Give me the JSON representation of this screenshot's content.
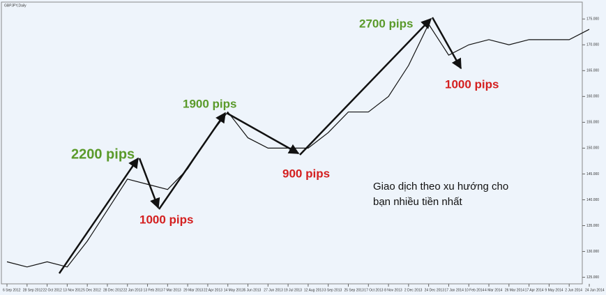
{
  "chart_data": {
    "type": "line",
    "title": "GBPJPY,Daily",
    "categories": [
      "6 Sep 2012",
      "28 Sep 2012",
      "22 Oct 2012",
      "13 Nov 2012",
      "5 Dec 2012",
      "28 Dec 2012",
      "22 Jan 2013",
      "13 Feb 2013",
      "7 Mar 2013",
      "29 Mar 2013",
      "22 Apr 2013",
      "14 May 2013",
      "5 Jun 2013",
      "27 Jun 2013",
      "19 Jul 2013",
      "12 Aug 2013",
      "3 Sep 2013",
      "25 Sep 2013",
      "17 Oct 2013",
      "8 Nov 2013",
      "2 Dec 2013",
      "24 Dec 2013",
      "17 Jan 2014",
      "10 Feb 2014",
      "4 Mar 2014",
      "26 Mar 2014",
      "17 Apr 2014",
      "9 May 2014",
      "2 Jun 2014",
      "24 Jun 2014"
    ],
    "series": [
      {
        "color": "#111111",
        "values": [
          128,
          127,
          128,
          127,
          132,
          138,
          144,
          143,
          142,
          146,
          152,
          157,
          152,
          150,
          150,
          150,
          153,
          157,
          157,
          160,
          166,
          174,
          168,
          170,
          171,
          170,
          171,
          171,
          171,
          173
        ]
      }
    ],
    "ylim": [
      124,
      178
    ],
    "yticks": [
      {
        "value": 125,
        "label": "125.000"
      },
      {
        "value": 130,
        "label": "130.000"
      },
      {
        "value": 135,
        "label": "135.000"
      },
      {
        "value": 140,
        "label": "140.000"
      },
      {
        "value": 145,
        "label": "145.000"
      },
      {
        "value": 150,
        "label": "150.000"
      },
      {
        "value": 155,
        "label": "155.000"
      },
      {
        "value": 160,
        "label": "160.000"
      },
      {
        "value": 165,
        "label": "165.000"
      },
      {
        "value": 170,
        "label": "170.000"
      },
      {
        "value": 175,
        "label": "175.000"
      }
    ],
    "annotations": [
      {
        "text": "2200 pips",
        "color": "#5a9a2a"
      },
      {
        "text": "1000 pips",
        "color": "#d42020"
      },
      {
        "text": "1900 pips",
        "color": "#5a9a2a"
      },
      {
        "text": "900 pips",
        "color": "#d42020"
      },
      {
        "text": "2700 pips",
        "color": "#5a9a2a"
      },
      {
        "text": "1000 pips",
        "color": "#d42020"
      },
      {
        "text": "Giao dịch theo xu hướng cho",
        "color": "#111111"
      },
      {
        "text": "bạn nhiều tiền nhất",
        "color": "#111111"
      }
    ]
  }
}
